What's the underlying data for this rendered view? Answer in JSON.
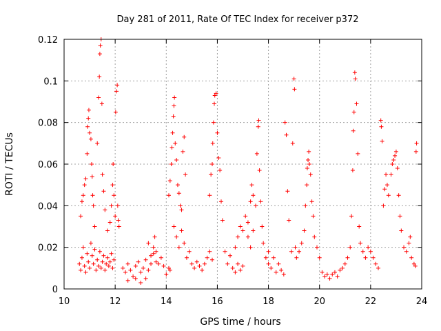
{
  "chart_data": {
    "type": "scatter",
    "title": "Day 281 of 2011, Rate Of TEC Index for receiver p372",
    "xlabel": "GPS time / hours",
    "ylabel": "ROTI / TECUs",
    "xlim": [
      10,
      24
    ],
    "ylim": [
      0,
      0.12
    ],
    "xticks": [
      10,
      12,
      14,
      16,
      18,
      20,
      22,
      24
    ],
    "yticks": [
      0,
      0.02,
      0.04,
      0.06,
      0.08,
      0.1,
      0.12
    ],
    "xtick_labels": [
      "10",
      "12",
      "14",
      "16",
      "18",
      "20",
      "22",
      "24"
    ],
    "ytick_labels": [
      "0",
      "0.02",
      "0.04",
      "0.06",
      "0.08",
      "0.1",
      "0.12"
    ],
    "grid": true,
    "marker": "+",
    "color": "#ff0000",
    "series": [
      {
        "name": "ROTI",
        "points": [
          [
            10.6,
            0.012
          ],
          [
            10.65,
            0.009
          ],
          [
            10.7,
            0.015
          ],
          [
            10.75,
            0.02
          ],
          [
            10.8,
            0.011
          ],
          [
            10.85,
            0.008
          ],
          [
            10.9,
            0.017
          ],
          [
            10.95,
            0.013
          ],
          [
            11.0,
            0.01
          ],
          [
            11.05,
            0.022
          ],
          [
            11.1,
            0.016
          ],
          [
            11.15,
            0.012
          ],
          [
            11.2,
            0.019
          ],
          [
            11.25,
            0.009
          ],
          [
            11.3,
            0.014
          ],
          [
            11.35,
            0.011
          ],
          [
            11.4,
            0.018
          ],
          [
            11.45,
            0.01
          ],
          [
            11.5,
            0.013
          ],
          [
            11.55,
            0.016
          ],
          [
            11.6,
            0.009
          ],
          [
            11.65,
            0.012
          ],
          [
            11.7,
            0.015
          ],
          [
            11.75,
            0.011
          ],
          [
            11.8,
            0.013
          ],
          [
            11.85,
            0.017
          ],
          [
            11.9,
            0.01
          ],
          [
            11.95,
            0.014
          ],
          [
            10.65,
            0.035
          ],
          [
            10.7,
            0.042
          ],
          [
            10.75,
            0.045
          ],
          [
            10.8,
            0.05
          ],
          [
            10.85,
            0.053
          ],
          [
            10.9,
            0.065
          ],
          [
            10.92,
            0.078
          ],
          [
            10.95,
            0.082
          ],
          [
            10.97,
            0.086
          ],
          [
            11.0,
            0.075
          ],
          [
            11.05,
            0.072
          ],
          [
            11.08,
            0.06
          ],
          [
            11.1,
            0.054
          ],
          [
            11.12,
            0.045
          ],
          [
            11.15,
            0.04
          ],
          [
            11.2,
            0.03
          ],
          [
            11.3,
            0.07
          ],
          [
            11.35,
            0.092
          ],
          [
            11.38,
            0.102
          ],
          [
            11.4,
            0.113
          ],
          [
            11.42,
            0.117
          ],
          [
            11.45,
            0.12
          ],
          [
            11.48,
            0.089
          ],
          [
            11.5,
            0.055
          ],
          [
            11.55,
            0.047
          ],
          [
            11.6,
            0.038
          ],
          [
            11.7,
            0.028
          ],
          [
            11.8,
            0.032
          ],
          [
            11.85,
            0.04
          ],
          [
            11.9,
            0.05
          ],
          [
            11.92,
            0.06
          ],
          [
            11.95,
            0.045
          ],
          [
            12.0,
            0.035
          ],
          [
            12.02,
            0.085
          ],
          [
            12.05,
            0.095
          ],
          [
            12.08,
            0.098
          ],
          [
            12.1,
            0.04
          ],
          [
            12.12,
            0.033
          ],
          [
            12.15,
            0.03
          ],
          [
            12.3,
            0.01
          ],
          [
            12.4,
            0.008
          ],
          [
            12.5,
            0.012
          ],
          [
            12.6,
            0.009
          ],
          [
            12.7,
            0.006
          ],
          [
            12.8,
            0.011
          ],
          [
            12.9,
            0.013
          ],
          [
            13.0,
            0.008
          ],
          [
            13.1,
            0.01
          ],
          [
            13.2,
            0.014
          ],
          [
            13.3,
            0.009
          ],
          [
            13.4,
            0.016
          ],
          [
            13.5,
            0.02
          ],
          [
            13.55,
            0.025
          ],
          [
            13.6,
            0.018
          ],
          [
            13.7,
            0.012
          ],
          [
            13.8,
            0.015
          ],
          [
            13.9,
            0.011
          ],
          [
            14.0,
            0.007
          ],
          [
            14.1,
            0.01
          ],
          [
            14.15,
            0.009
          ],
          [
            12.5,
            0.004
          ],
          [
            12.8,
            0.005
          ],
          [
            13.0,
            0.003
          ],
          [
            13.2,
            0.005
          ],
          [
            13.4,
            0.012
          ],
          [
            13.5,
            0.017
          ],
          [
            13.3,
            0.022
          ],
          [
            13.6,
            0.013
          ],
          [
            14.1,
            0.045
          ],
          [
            14.15,
            0.052
          ],
          [
            14.2,
            0.06
          ],
          [
            14.22,
            0.068
          ],
          [
            14.25,
            0.075
          ],
          [
            14.28,
            0.083
          ],
          [
            14.3,
            0.088
          ],
          [
            14.32,
            0.092
          ],
          [
            14.35,
            0.07
          ],
          [
            14.4,
            0.062
          ],
          [
            14.45,
            0.05
          ],
          [
            14.5,
            0.046
          ],
          [
            14.55,
            0.04
          ],
          [
            14.6,
            0.038
          ],
          [
            14.65,
            0.066
          ],
          [
            14.7,
            0.073
          ],
          [
            14.75,
            0.055
          ],
          [
            14.3,
            0.03
          ],
          [
            14.4,
            0.025
          ],
          [
            14.5,
            0.02
          ],
          [
            14.6,
            0.028
          ],
          [
            14.7,
            0.022
          ],
          [
            14.8,
            0.015
          ],
          [
            14.9,
            0.018
          ],
          [
            15.0,
            0.012
          ],
          [
            15.1,
            0.01
          ],
          [
            15.2,
            0.013
          ],
          [
            15.3,
            0.011
          ],
          [
            15.4,
            0.009
          ],
          [
            15.5,
            0.012
          ],
          [
            15.6,
            0.015
          ],
          [
            15.7,
            0.018
          ],
          [
            15.8,
            0.014
          ],
          [
            15.7,
            0.045
          ],
          [
            15.75,
            0.055
          ],
          [
            15.8,
            0.06
          ],
          [
            15.82,
            0.07
          ],
          [
            15.85,
            0.08
          ],
          [
            15.88,
            0.089
          ],
          [
            15.9,
            0.093
          ],
          [
            15.95,
            0.094
          ],
          [
            16.0,
            0.075
          ],
          [
            16.05,
            0.063
          ],
          [
            16.1,
            0.057
          ],
          [
            16.15,
            0.042
          ],
          [
            16.2,
            0.033
          ],
          [
            16.3,
            0.018
          ],
          [
            16.4,
            0.012
          ],
          [
            16.5,
            0.016
          ],
          [
            16.6,
            0.01
          ],
          [
            16.7,
            0.008
          ],
          [
            16.8,
            0.012
          ],
          [
            16.9,
            0.009
          ],
          [
            17.0,
            0.011
          ],
          [
            16.7,
            0.02
          ],
          [
            16.8,
            0.025
          ],
          [
            16.9,
            0.03
          ],
          [
            17.0,
            0.028
          ],
          [
            17.1,
            0.035
          ],
          [
            17.2,
            0.032
          ],
          [
            17.3,
            0.042
          ],
          [
            17.35,
            0.05
          ],
          [
            17.4,
            0.045
          ],
          [
            17.5,
            0.04
          ],
          [
            17.55,
            0.065
          ],
          [
            17.6,
            0.078
          ],
          [
            17.62,
            0.081
          ],
          [
            17.65,
            0.057
          ],
          [
            17.7,
            0.042
          ],
          [
            17.75,
            0.03
          ],
          [
            17.8,
            0.022
          ],
          [
            17.9,
            0.015
          ],
          [
            18.0,
            0.018
          ],
          [
            17.2,
            0.025
          ],
          [
            17.3,
            0.02
          ],
          [
            17.4,
            0.028
          ],
          [
            18.0,
            0.012
          ],
          [
            18.1,
            0.01
          ],
          [
            18.2,
            0.015
          ],
          [
            18.3,
            0.008
          ],
          [
            18.4,
            0.012
          ],
          [
            18.5,
            0.009
          ],
          [
            18.6,
            0.007
          ],
          [
            18.65,
            0.08
          ],
          [
            18.7,
            0.074
          ],
          [
            18.75,
            0.047
          ],
          [
            18.8,
            0.033
          ],
          [
            18.9,
            0.018
          ],
          [
            18.95,
            0.07
          ],
          [
            19.0,
            0.101
          ],
          [
            19.02,
            0.096
          ],
          [
            19.05,
            0.02
          ],
          [
            19.1,
            0.015
          ],
          [
            19.2,
            0.018
          ],
          [
            19.3,
            0.022
          ],
          [
            19.4,
            0.028
          ],
          [
            19.45,
            0.04
          ],
          [
            19.5,
            0.05
          ],
          [
            19.52,
            0.058
          ],
          [
            19.55,
            0.062
          ],
          [
            19.58,
            0.066
          ],
          [
            19.6,
            0.06
          ],
          [
            19.65,
            0.055
          ],
          [
            19.7,
            0.042
          ],
          [
            19.75,
            0.035
          ],
          [
            19.8,
            0.025
          ],
          [
            19.9,
            0.02
          ],
          [
            20.0,
            0.015
          ],
          [
            20.1,
            0.008
          ],
          [
            20.2,
            0.006
          ],
          [
            20.3,
            0.007
          ],
          [
            20.4,
            0.005
          ],
          [
            20.5,
            0.007
          ],
          [
            20.6,
            0.008
          ],
          [
            20.7,
            0.006
          ],
          [
            20.8,
            0.009
          ],
          [
            20.9,
            0.01
          ],
          [
            21.0,
            0.012
          ],
          [
            21.1,
            0.015
          ],
          [
            21.2,
            0.02
          ],
          [
            21.25,
            0.035
          ],
          [
            21.3,
            0.057
          ],
          [
            21.32,
            0.076
          ],
          [
            21.35,
            0.085
          ],
          [
            21.38,
            0.104
          ],
          [
            21.4,
            0.101
          ],
          [
            21.45,
            0.089
          ],
          [
            21.5,
            0.065
          ],
          [
            21.55,
            0.03
          ],
          [
            21.6,
            0.022
          ],
          [
            21.7,
            0.018
          ],
          [
            21.8,
            0.015
          ],
          [
            21.9,
            0.02
          ],
          [
            22.0,
            0.018
          ],
          [
            22.1,
            0.015
          ],
          [
            22.2,
            0.012
          ],
          [
            22.3,
            0.01
          ],
          [
            22.4,
            0.081
          ],
          [
            22.42,
            0.078
          ],
          [
            22.45,
            0.071
          ],
          [
            22.5,
            0.04
          ],
          [
            22.55,
            0.048
          ],
          [
            22.6,
            0.055
          ],
          [
            22.65,
            0.05
          ],
          [
            22.7,
            0.045
          ],
          [
            22.8,
            0.055
          ],
          [
            22.85,
            0.06
          ],
          [
            22.9,
            0.062
          ],
          [
            22.95,
            0.064
          ],
          [
            23.0,
            0.066
          ],
          [
            23.05,
            0.058
          ],
          [
            23.1,
            0.045
          ],
          [
            23.15,
            0.035
          ],
          [
            23.2,
            0.028
          ],
          [
            23.3,
            0.02
          ],
          [
            23.4,
            0.018
          ],
          [
            23.5,
            0.022
          ],
          [
            23.55,
            0.025
          ],
          [
            23.6,
            0.015
          ],
          [
            23.7,
            0.012
          ],
          [
            23.75,
            0.011
          ],
          [
            23.78,
            0.066
          ],
          [
            23.8,
            0.07
          ]
        ]
      }
    ]
  }
}
